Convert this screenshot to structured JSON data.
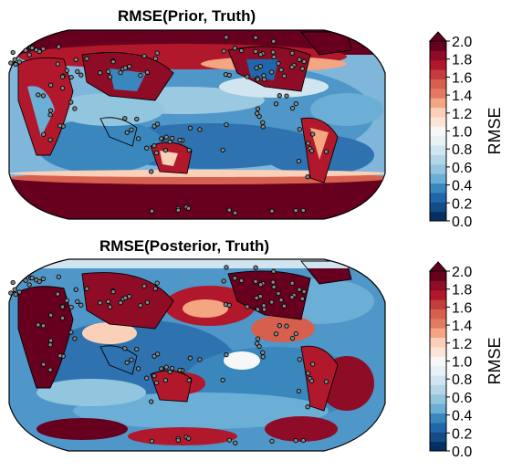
{
  "panels": [
    {
      "title": "RMSE(Prior, Truth)",
      "colorbar": {
        "label": "RMSE",
        "ticks": [
          "0.0",
          "0.2",
          "0.4",
          "0.6",
          "0.8",
          "1.0",
          "1.2",
          "1.4",
          "1.6",
          "1.8",
          "2.0"
        ],
        "range": [
          0.0,
          2.0
        ],
        "extend": "max"
      }
    },
    {
      "title": "RMSE(Posterior, Truth)",
      "colorbar": {
        "label": "RMSE",
        "ticks": [
          "0.0",
          "0.2",
          "0.4",
          "0.6",
          "0.8",
          "1.0",
          "1.2",
          "1.4",
          "1.6",
          "1.8",
          "2.0"
        ],
        "range": [
          0.0,
          2.0
        ],
        "extend": "max"
      }
    }
  ],
  "colormap": {
    "name": "RdBu_r",
    "colors": [
      "#053061",
      "#134c87",
      "#2166ac",
      "#3a87be",
      "#6baed6",
      "#92c5de",
      "#b5d5e8",
      "#d1e5f0",
      "#e8f1f6",
      "#f7f7f7",
      "#fde4d6",
      "#fbd0b9",
      "#f4a582",
      "#e07b62",
      "#d6604d",
      "#c43c3c",
      "#b2182b",
      "#8e0c25",
      "#67001f"
    ]
  },
  "marker": {
    "fill": "#7f8c8d",
    "edge": "#000000"
  }
}
